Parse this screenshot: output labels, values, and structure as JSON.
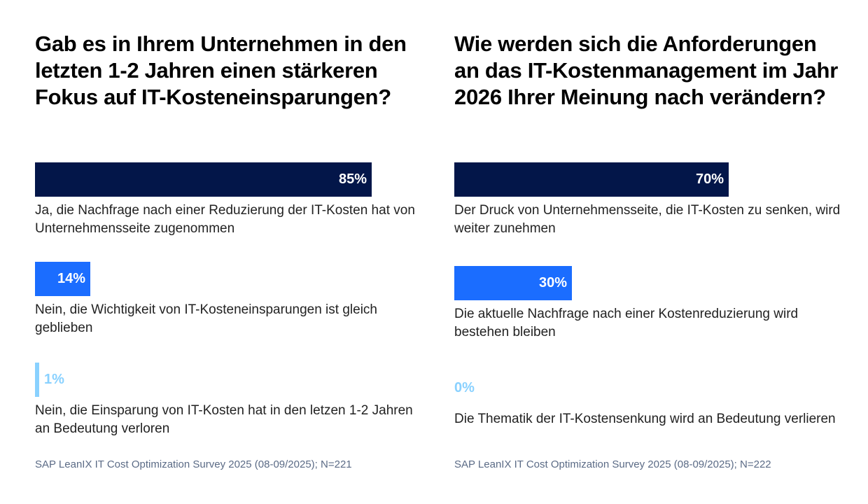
{
  "chart_data": [
    {
      "type": "bar",
      "title": "Gab es in Ihrem Unternehmen in den letzten 1-2 Jahren einen stärkeren Fokus auf IT-Kosteneinsparungen?",
      "categories": [
        "Ja, die Nachfrage nach einer Reduzierung der IT-Kosten hat von Unternehmensseite zugenommen",
        "Nein, die Wichtigkeit von IT-Kosteneinsparungen ist gleich geblieben",
        "Nein, die Einsparung von IT-Kosten hat in den letzen 1-2 Jahren an Bedeutung verloren"
      ],
      "values": [
        85,
        14,
        1
      ],
      "labels": [
        "85%",
        "14%",
        "1%"
      ],
      "colors": [
        "#031649",
        "#1b6dff",
        "#89d1ff"
      ],
      "source": "SAP LeanIX IT Cost Optimization Survey 2025 (08-09/2025); N=221"
    },
    {
      "type": "bar",
      "title": "Wie werden sich die Anforderungen an das IT-Kostenmanagement im Jahr 2026 Ihrer Meinung nach verändern?",
      "categories": [
        "Der Druck von Unternehmensseite, die IT-Kosten zu senken, wird weiter zunehmen",
        "Die aktuelle Nachfrage nach einer Kostenreduzierung wird bestehen bleiben",
        "Die Thematik der IT-Kostensenkung wird an Bedeutung verlieren"
      ],
      "values": [
        70,
        30,
        0
      ],
      "labels": [
        "70%",
        "30%",
        "0%"
      ],
      "colors": [
        "#031649",
        "#1b6dff",
        "#89d1ff"
      ],
      "source": "SAP LeanIX IT Cost Optimization Survey 2025 (08-09/2025); N=222"
    }
  ]
}
